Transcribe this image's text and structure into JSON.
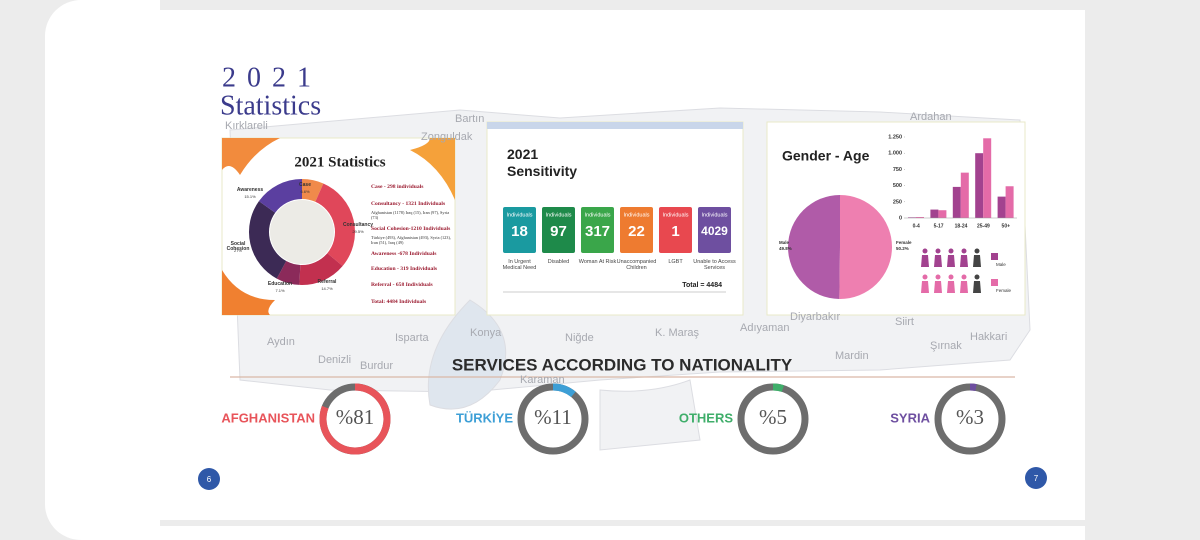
{
  "header": {
    "year": "2 0 2 1",
    "title": "Statistics"
  },
  "map_labels": [
    "Bartın",
    "Kırklareli",
    "Zonguldak",
    "Ardahan",
    "Konya",
    "Niğde",
    "K. Maraş",
    "Adıyaman",
    "Diyarbakır",
    "Siirt",
    "Hakkari",
    "Şırnak",
    "Mardin",
    "Aydın",
    "Denizli",
    "Isparta",
    "Burdur",
    "Karaman"
  ],
  "statistics": {
    "title": "2021 Statistics",
    "type": "pie",
    "categories": [
      "Case",
      "Consultancy",
      "Referral",
      "Education",
      "Social Cohesion",
      "Awareness"
    ],
    "values": [
      6.6,
      29.5,
      14.7,
      7.1,
      27,
      15.1
    ],
    "value_labels": [
      "6.6%",
      "29.5%",
      "14.7%",
      "7.1%",
      "27%",
      "15.1%"
    ],
    "colors": [
      "#f08a4b",
      "#e0475a",
      "#c2304f",
      "#8b2a5a",
      "#3c2a55",
      "#5b3fa0"
    ],
    "items": [
      "Case - 298 individuals",
      "Consultancy - 1321 Individuals",
      "Afghanistan (1178) Iraq (15), Iran (97), Syria (73)",
      "Social Cohesion-1210 Individuals",
      "Türkiye (493), Afghanistan (493), Syria (123), Iran (51), Iraq (49)",
      "Awareness -678 Individuals",
      "Education - 319 Individuals",
      "Referral - 658 Individuals",
      "Total: 4484 Individuals"
    ]
  },
  "sensitivity": {
    "title": "2021 Sensitivity",
    "unit_label": "Individuals",
    "values": [
      18,
      97,
      317,
      22,
      1,
      4029
    ],
    "captions": [
      "In Urgent Medical Need",
      "Disabled",
      "Woman At Risk",
      "Unaccompanied Children",
      "LGBT",
      "Unable to Access Services"
    ],
    "colors": [
      "#1a9aa0",
      "#1e8a4a",
      "#3aa64a",
      "#ee7b30",
      "#e8484f",
      "#6e4fa0"
    ],
    "total": "Total = 4484"
  },
  "gender_age": {
    "title": "Gender - Age",
    "pie": {
      "type": "pie",
      "categories": [
        "Male",
        "Female"
      ],
      "values": [
        49.8,
        50.2
      ],
      "value_labels": [
        "49.8%",
        "50.2%"
      ],
      "colors": [
        "#b05ba8",
        "#ee7fb0"
      ]
    },
    "bars": {
      "type": "bar",
      "categories": [
        "0-4",
        "5-17",
        "18-24",
        "25-49",
        "50+"
      ],
      "series": [
        {
          "name": "Male",
          "color": "#a2428f",
          "values": [
            10,
            130,
            480,
            1000,
            330
          ]
        },
        {
          "name": "Female",
          "color": "#e46ba8",
          "values": [
            15,
            120,
            700,
            1230,
            490
          ]
        }
      ],
      "ylim": [
        0,
        1250
      ],
      "yticks": [
        0,
        250,
        500,
        750,
        {
          "value": 1000,
          "label": "1.000"
        },
        {
          "value": 1250,
          "label": "1.250"
        }
      ]
    }
  },
  "nationality": {
    "title": "SERVICES ACCORDING TO NATIONALITY",
    "type": "pie",
    "categories": [
      "AFGHANISTAN",
      "TÜRKİYE",
      "OTHERS",
      "SYRIA"
    ],
    "values": [
      81,
      11,
      5,
      3
    ],
    "value_labels": [
      "%81",
      "%11",
      "%5",
      "%3"
    ],
    "colors": [
      "#e8545a",
      "#3d9fd6",
      "#3fae6a",
      "#6e4fa0"
    ]
  },
  "pages": [
    "6",
    "7"
  ]
}
